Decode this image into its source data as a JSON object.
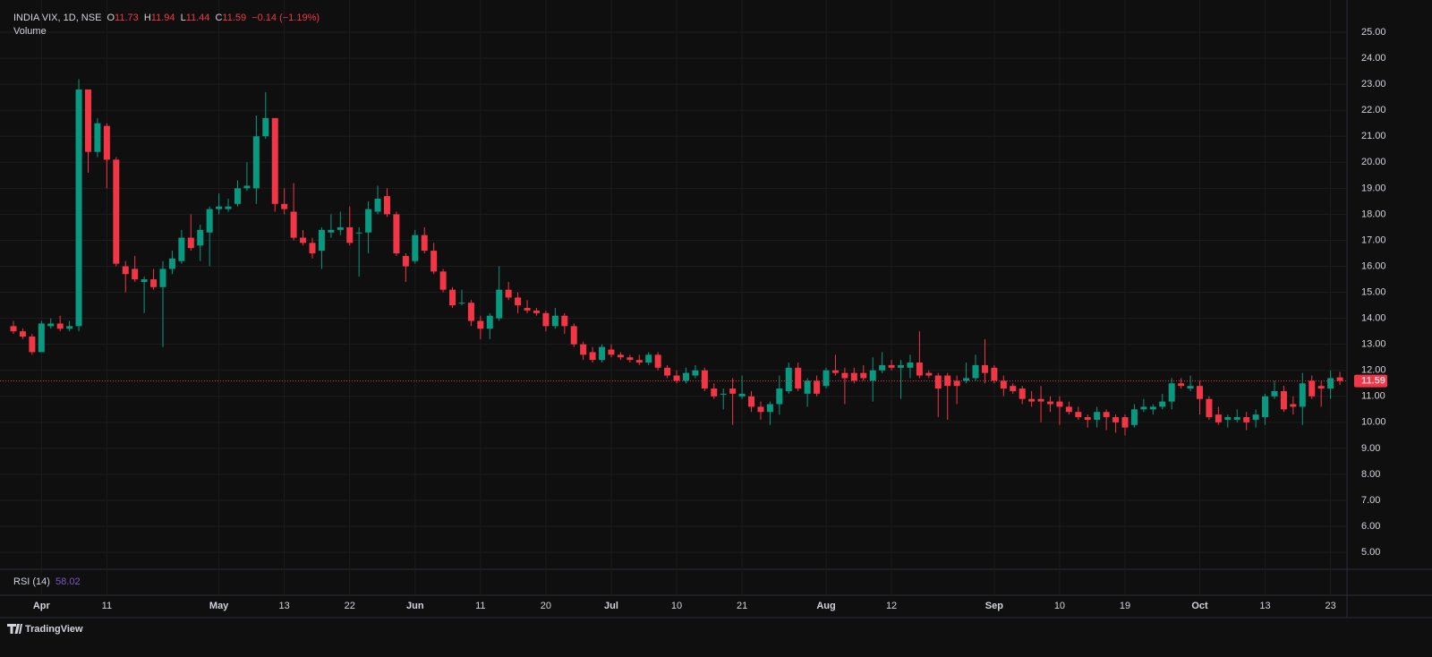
{
  "chart_data": {
    "type": "candlestick",
    "symbol": "INDIA VIX, 1D, NSE",
    "ohlc_letters": [
      "O",
      "H",
      "L",
      "C"
    ],
    "change": "−0.14 (−1.19%)",
    "volume_label": "Volume",
    "rsi_label": "RSI (14)",
    "rsi_value": 58.02,
    "brand": "TradingView",
    "up_color": "#089981",
    "down_color": "#f23645",
    "grid": true,
    "ylim": [
      4.35,
      26.24
    ],
    "yticks": [
      {
        "value": 5,
        "label": "5.00"
      },
      {
        "value": 6,
        "label": "6.00"
      },
      {
        "value": 7,
        "label": "7.00"
      },
      {
        "value": 8,
        "label": "8.00"
      },
      {
        "value": 9,
        "label": "9.00"
      },
      {
        "value": 10,
        "label": "10.00"
      },
      {
        "value": 11,
        "label": "11.00"
      },
      {
        "value": 12,
        "label": "12.00"
      },
      {
        "value": 13,
        "label": "13.00"
      },
      {
        "value": 14,
        "label": "14.00"
      },
      {
        "value": 15,
        "label": "15.00"
      },
      {
        "value": 16,
        "label": "16.00"
      },
      {
        "value": 17,
        "label": "17.00"
      },
      {
        "value": 18,
        "label": "18.00"
      },
      {
        "value": 19,
        "label": "19.00"
      },
      {
        "value": 20,
        "label": "20.00"
      },
      {
        "value": 21,
        "label": "21.00"
      },
      {
        "value": 22,
        "label": "22.00"
      },
      {
        "value": 23,
        "label": "23.00"
      },
      {
        "value": 24,
        "label": "24.00"
      },
      {
        "value": 25,
        "label": "25.00"
      }
    ],
    "categories": [
      null,
      null,
      null,
      "Apr",
      null,
      null,
      null,
      null,
      null,
      null,
      "11",
      null,
      null,
      null,
      null,
      null,
      null,
      null,
      null,
      null,
      null,
      null,
      "May",
      null,
      null,
      null,
      null,
      null,
      null,
      "13",
      null,
      null,
      null,
      null,
      null,
      null,
      "22",
      null,
      null,
      null,
      null,
      null,
      null,
      "Jun",
      null,
      null,
      null,
      null,
      null,
      null,
      "11",
      null,
      null,
      null,
      null,
      null,
      null,
      "20",
      null,
      null,
      null,
      null,
      null,
      null,
      "Jul",
      null,
      null,
      null,
      null,
      null,
      null,
      "10",
      null,
      null,
      null,
      null,
      null,
      null,
      "21",
      null,
      null,
      null,
      null,
      null,
      null,
      null,
      null,
      "Aug",
      null,
      null,
      null,
      null,
      null,
      null,
      "12",
      null,
      null,
      null,
      null,
      null,
      null,
      null,
      null,
      null,
      null,
      "Sep",
      null,
      null,
      null,
      null,
      null,
      null,
      "10",
      null,
      null,
      null,
      null,
      null,
      null,
      "19",
      null,
      null,
      null,
      null,
      null,
      null,
      null,
      "Oct",
      null,
      null,
      null,
      null,
      null,
      null,
      "13",
      null,
      null,
      null,
      null,
      null,
      null,
      "23",
      null
    ],
    "candles": [
      [
        13.7,
        13.9,
        13.4,
        13.5
      ],
      [
        13.5,
        13.6,
        13.2,
        13.3
      ],
      [
        13.3,
        13.4,
        12.6,
        12.7
      ],
      [
        12.7,
        13.9,
        12.7,
        13.8
      ],
      [
        13.7,
        14.0,
        13.6,
        13.8
      ],
      [
        13.8,
        14.1,
        13.5,
        13.6
      ],
      [
        13.6,
        13.9,
        13.5,
        13.7
      ],
      [
        13.7,
        23.2,
        13.5,
        22.8
      ],
      [
        22.8,
        22.8,
        19.6,
        20.4
      ],
      [
        20.4,
        21.7,
        20.2,
        21.5
      ],
      [
        21.4,
        21.5,
        19.0,
        20.1
      ],
      [
        20.1,
        20.2,
        16.0,
        16.1
      ],
      [
        16.0,
        16.2,
        15.0,
        15.7
      ],
      [
        15.9,
        16.4,
        15.4,
        15.5
      ],
      [
        15.4,
        15.6,
        14.2,
        15.5
      ],
      [
        15.5,
        15.9,
        15.1,
        15.2
      ],
      [
        15.2,
        16.2,
        12.9,
        15.9
      ],
      [
        15.9,
        16.6,
        15.7,
        16.3
      ],
      [
        16.2,
        17.4,
        16.1,
        17.1
      ],
      [
        17.1,
        18.0,
        16.6,
        16.7
      ],
      [
        16.8,
        17.6,
        16.2,
        17.4
      ],
      [
        17.3,
        18.3,
        16.0,
        18.2
      ],
      [
        18.2,
        18.8,
        18.0,
        18.3
      ],
      [
        18.2,
        18.6,
        18.1,
        18.3
      ],
      [
        18.4,
        19.3,
        18.3,
        19.0
      ],
      [
        19.0,
        20.0,
        18.9,
        19.1
      ],
      [
        19.0,
        21.8,
        18.4,
        21.0
      ],
      [
        21.0,
        22.7,
        20.9,
        21.7
      ],
      [
        21.7,
        21.7,
        18.1,
        18.4
      ],
      [
        18.4,
        19.0,
        18.0,
        18.2
      ],
      [
        18.1,
        19.2,
        17.0,
        17.1
      ],
      [
        17.1,
        17.4,
        16.8,
        16.9
      ],
      [
        16.9,
        17.1,
        16.3,
        16.5
      ],
      [
        16.6,
        17.5,
        15.9,
        17.4
      ],
      [
        17.3,
        18.0,
        17.1,
        17.4
      ],
      [
        17.4,
        18.1,
        17.2,
        17.5
      ],
      [
        17.5,
        18.3,
        16.8,
        16.9
      ],
      [
        17.3,
        17.5,
        15.6,
        17.3
      ],
      [
        17.3,
        18.5,
        16.5,
        18.2
      ],
      [
        18.1,
        19.1,
        18.0,
        18.6
      ],
      [
        18.7,
        19.0,
        17.9,
        18.0
      ],
      [
        18.0,
        18.1,
        16.4,
        16.5
      ],
      [
        16.4,
        16.5,
        15.4,
        16.0
      ],
      [
        16.2,
        17.4,
        16.1,
        17.2
      ],
      [
        17.2,
        17.5,
        16.5,
        16.6
      ],
      [
        16.6,
        16.9,
        15.7,
        15.8
      ],
      [
        15.8,
        15.9,
        15.0,
        15.1
      ],
      [
        15.1,
        15.2,
        14.4,
        14.5
      ],
      [
        14.6,
        15.1,
        14.5,
        14.6
      ],
      [
        14.6,
        14.7,
        13.7,
        13.9
      ],
      [
        13.9,
        14.1,
        13.2,
        13.6
      ],
      [
        13.6,
        14.2,
        13.2,
        14.1
      ],
      [
        14.0,
        16.0,
        13.9,
        15.1
      ],
      [
        15.1,
        15.4,
        14.7,
        14.8
      ],
      [
        14.8,
        15.0,
        14.2,
        14.5
      ],
      [
        14.4,
        14.7,
        14.2,
        14.3
      ],
      [
        14.3,
        14.4,
        14.1,
        14.2
      ],
      [
        14.2,
        14.3,
        13.5,
        13.7
      ],
      [
        13.7,
        14.4,
        13.6,
        14.1
      ],
      [
        14.1,
        14.2,
        13.4,
        13.7
      ],
      [
        13.7,
        13.8,
        12.9,
        13.0
      ],
      [
        13.0,
        13.1,
        12.4,
        12.6
      ],
      [
        12.7,
        12.9,
        12.3,
        12.4
      ],
      [
        12.4,
        13.0,
        12.3,
        12.9
      ],
      [
        12.8,
        13.0,
        12.5,
        12.6
      ],
      [
        12.6,
        12.7,
        12.4,
        12.5
      ],
      [
        12.5,
        12.6,
        12.3,
        12.4
      ],
      [
        12.4,
        12.6,
        12.2,
        12.3
      ],
      [
        12.3,
        12.7,
        12.2,
        12.6
      ],
      [
        12.6,
        12.7,
        12.0,
        12.1
      ],
      [
        12.1,
        12.2,
        11.7,
        11.8
      ],
      [
        11.8,
        12.0,
        11.5,
        11.6
      ],
      [
        11.6,
        12.1,
        11.5,
        11.9
      ],
      [
        11.8,
        12.2,
        11.7,
        12.0
      ],
      [
        12.0,
        12.1,
        11.2,
        11.3
      ],
      [
        11.3,
        11.5,
        10.9,
        11.0
      ],
      [
        11.1,
        11.3,
        10.5,
        11.1
      ],
      [
        11.3,
        11.7,
        9.9,
        11.1
      ],
      [
        11.0,
        11.8,
        10.9,
        11.1
      ],
      [
        11.0,
        11.2,
        10.4,
        10.6
      ],
      [
        10.6,
        10.8,
        10.1,
        10.4
      ],
      [
        10.4,
        10.8,
        9.9,
        10.7
      ],
      [
        10.7,
        11.8,
        10.3,
        11.3
      ],
      [
        11.2,
        12.3,
        11.1,
        12.1
      ],
      [
        12.1,
        12.3,
        11.2,
        11.3
      ],
      [
        11.1,
        11.7,
        10.6,
        11.6
      ],
      [
        11.6,
        11.8,
        11.0,
        11.1
      ],
      [
        11.4,
        12.1,
        11.3,
        12.0
      ],
      [
        12.0,
        12.6,
        11.8,
        11.9
      ],
      [
        11.9,
        12.1,
        10.7,
        11.7
      ],
      [
        11.9,
        12.1,
        11.5,
        11.6
      ],
      [
        11.9,
        12.2,
        11.6,
        11.7
      ],
      [
        11.6,
        12.5,
        10.8,
        12.0
      ],
      [
        12.0,
        12.7,
        11.9,
        12.2
      ],
      [
        12.2,
        12.4,
        12.0,
        12.1
      ],
      [
        12.1,
        12.4,
        10.9,
        12.2
      ],
      [
        12.1,
        12.6,
        11.7,
        12.3
      ],
      [
        12.3,
        13.5,
        11.7,
        11.8
      ],
      [
        11.9,
        12.0,
        11.7,
        11.8
      ],
      [
        11.8,
        11.9,
        10.2,
        11.3
      ],
      [
        11.8,
        11.9,
        10.1,
        11.4
      ],
      [
        11.6,
        11.8,
        10.7,
        11.4
      ],
      [
        11.6,
        12.3,
        11.5,
        11.7
      ],
      [
        11.7,
        12.6,
        11.6,
        12.2
      ],
      [
        12.2,
        13.2,
        11.5,
        11.9
      ],
      [
        12.1,
        12.2,
        11.5,
        11.6
      ],
      [
        11.6,
        11.8,
        11.0,
        11.3
      ],
      [
        11.4,
        11.5,
        11.1,
        11.2
      ],
      [
        11.3,
        11.4,
        10.7,
        10.9
      ],
      [
        10.9,
        11.2,
        10.6,
        10.8
      ],
      [
        10.9,
        11.4,
        10.0,
        10.8
      ],
      [
        10.8,
        11.0,
        10.4,
        10.7
      ],
      [
        10.8,
        11.0,
        9.9,
        10.6
      ],
      [
        10.6,
        10.8,
        10.3,
        10.4
      ],
      [
        10.4,
        10.6,
        10.1,
        10.2
      ],
      [
        10.2,
        10.3,
        9.8,
        10.1
      ],
      [
        10.1,
        10.6,
        9.8,
        10.4
      ],
      [
        10.4,
        10.5,
        9.7,
        10.2
      ],
      [
        10.2,
        10.3,
        9.6,
        10.0
      ],
      [
        10.2,
        10.3,
        9.5,
        9.8
      ],
      [
        9.9,
        10.7,
        9.8,
        10.5
      ],
      [
        10.5,
        10.9,
        10.4,
        10.6
      ],
      [
        10.5,
        10.7,
        10.3,
        10.6
      ],
      [
        10.6,
        11.1,
        10.5,
        10.8
      ],
      [
        10.8,
        11.7,
        10.5,
        11.5
      ],
      [
        11.5,
        11.7,
        11.3,
        11.4
      ],
      [
        11.3,
        11.8,
        11.2,
        11.4
      ],
      [
        11.4,
        11.6,
        10.3,
        10.9
      ],
      [
        10.9,
        11.0,
        10.1,
        10.2
      ],
      [
        10.3,
        10.6,
        9.9,
        10.0
      ],
      [
        10.1,
        10.3,
        9.8,
        10.2
      ],
      [
        10.1,
        10.5,
        10.0,
        10.2
      ],
      [
        10.2,
        10.4,
        9.7,
        10.0
      ],
      [
        10.1,
        10.5,
        9.8,
        10.3
      ],
      [
        10.2,
        11.1,
        9.9,
        11.0
      ],
      [
        11.0,
        11.6,
        10.9,
        11.2
      ],
      [
        11.2,
        11.4,
        10.4,
        10.5
      ],
      [
        10.7,
        11.0,
        10.3,
        10.6
      ],
      [
        10.6,
        11.9,
        9.9,
        11.5
      ],
      [
        11.6,
        11.8,
        10.9,
        11.0
      ],
      [
        11.4,
        11.6,
        10.6,
        11.3
      ],
      [
        11.3,
        12.0,
        10.9,
        11.7
      ],
      [
        11.73,
        11.94,
        11.44,
        11.59
      ]
    ]
  }
}
